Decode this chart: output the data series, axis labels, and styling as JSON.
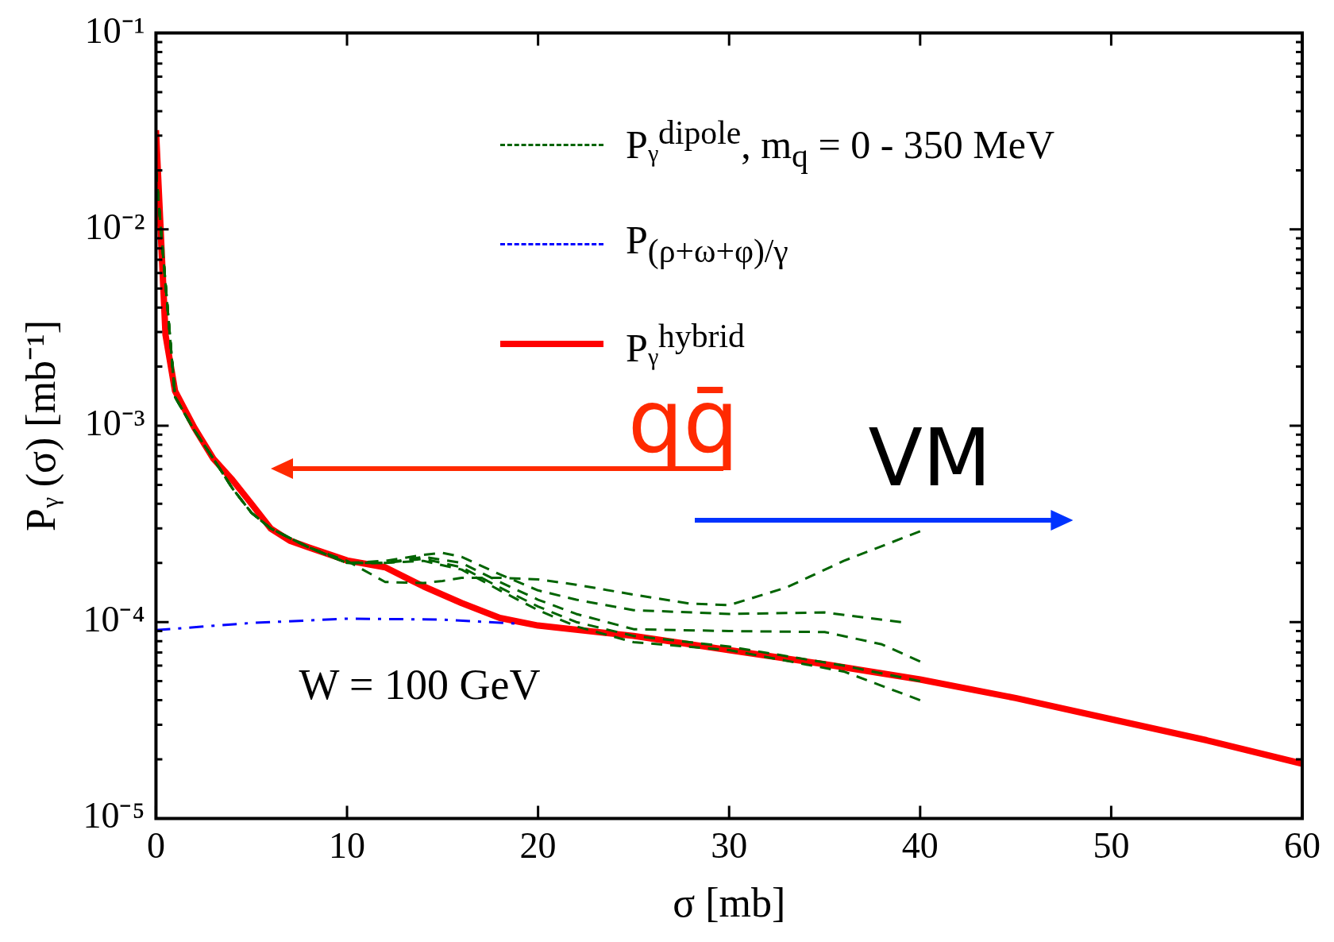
{
  "chart_data": {
    "type": "line",
    "xlabel": "σ [mb]",
    "ylabel": "Pᵧ (σ) [mb⁻¹]",
    "xlim": [
      0,
      60
    ],
    "xticks": [
      0,
      10,
      20,
      30,
      40,
      50,
      60
    ],
    "ylim": [
      1e-05,
      0.1
    ],
    "yticks": [
      {
        "value": 0.1,
        "label": "10⁻¹"
      },
      {
        "value": 0.01,
        "label": "10⁻²"
      },
      {
        "value": 0.001,
        "label": "10⁻³"
      },
      {
        "value": 0.0001,
        "label": "10⁻⁴"
      },
      {
        "value": 1e-05,
        "label": "10⁻⁵"
      }
    ],
    "log": "y",
    "grid": false,
    "legend": "top right",
    "marker": "none",
    "annotations": [
      "W = 100 GeV",
      "qq̄",
      "VM"
    ],
    "series": [
      {
        "name": "Pᵧ$^{dipole}$, m$_{q}$ = 0 - 350 MeV",
        "color": "#006400",
        "line_style": "dashed",
        "x": [
          0,
          1,
          2,
          3,
          4,
          5,
          6,
          8,
          10,
          12,
          14,
          15,
          16,
          18,
          20,
          22,
          25,
          28,
          30,
          33,
          36,
          40
        ],
        "values": [
          0.02,
          0.0014,
          0.00095,
          0.00068,
          0.00048,
          0.00036,
          0.0003,
          0.00024,
          0.000205,
          0.00016,
          0.000158,
          0.000162,
          0.000168,
          0.000168,
          0.000165,
          0.000155,
          0.000138,
          0.000124,
          0.000122,
          0.00015,
          0.000205,
          0.00029
        ]
      },
      {
        "color": "#006400",
        "line_style": "dashed",
        "x": [
          0,
          1,
          2,
          3,
          4,
          5,
          6,
          8,
          10,
          12,
          14,
          15,
          16,
          18,
          20,
          22,
          25,
          30,
          35,
          39
        ],
        "values": [
          0.02,
          0.0014,
          0.00095,
          0.00068,
          0.00048,
          0.00036,
          0.0003,
          0.00024,
          0.0002,
          0.000205,
          0.00022,
          0.000225,
          0.000215,
          0.000175,
          0.000145,
          0.00013,
          0.000115,
          0.00011,
          0.000112,
          0.0001
        ]
      },
      {
        "color": "#006400",
        "line_style": "dashed",
        "x": [
          0,
          1,
          2,
          3,
          4,
          5,
          6,
          8,
          10,
          12,
          14,
          16,
          18,
          20,
          22,
          25,
          30,
          35,
          38,
          40
        ],
        "values": [
          0.02,
          0.0014,
          0.00095,
          0.00068,
          0.00048,
          0.00036,
          0.0003,
          0.00024,
          0.0002,
          0.0002,
          0.000215,
          0.0002,
          0.00016,
          0.00013,
          0.00011,
          9.2e-05,
          9e-05,
          8.9e-05,
          7.7e-05,
          6.3e-05
        ]
      },
      {
        "color": "#006400",
        "line_style": "dashed",
        "x": [
          0,
          1,
          2,
          3,
          4,
          5,
          6,
          8,
          10,
          12,
          14,
          16,
          18,
          20,
          22,
          25,
          30,
          36,
          40
        ],
        "values": [
          0.02,
          0.0014,
          0.00095,
          0.00068,
          0.00048,
          0.00036,
          0.0003,
          0.00024,
          0.0002,
          0.0002,
          0.000205,
          0.000185,
          0.000145,
          0.000115,
          9.5e-05,
          7.9e-05,
          7.2e-05,
          5.6e-05,
          4e-05
        ]
      },
      {
        "color": "#006400",
        "line_style": "dashed",
        "x": [
          0,
          1,
          2,
          3,
          4,
          5,
          6,
          8,
          10,
          12,
          14,
          16,
          18,
          20,
          22,
          25,
          30,
          36,
          40
        ],
        "values": [
          0.02,
          0.0014,
          0.00095,
          0.00068,
          0.00048,
          0.00036,
          0.0003,
          0.00024,
          0.0002,
          0.0002,
          0.00021,
          0.00019,
          0.00015,
          0.00012,
          0.0001,
          8.5e-05,
          7.5e-05,
          6e-05,
          5e-05
        ]
      },
      {
        "name": "P$_{(ρ+ω+φ)/γ}$",
        "color": "#0000ff",
        "line_style": "dashdot",
        "x": [
          0,
          5,
          10,
          15,
          19
        ],
        "values": [
          9.1e-05,
          9.9e-05,
          0.000104,
          0.000103,
          9.8e-05
        ]
      },
      {
        "name": "Pᵧ$^{hybrid}$",
        "color": "#ff0000",
        "line_style": "solid",
        "x": [
          0,
          0.5,
          1,
          2,
          3,
          4,
          5,
          6,
          7,
          8,
          10,
          12,
          14,
          16,
          18,
          20,
          25,
          30,
          35,
          40,
          45,
          50,
          55,
          60
        ],
        "values": [
          0.032,
          0.0029,
          0.0015,
          0.00098,
          0.00068,
          0.00053,
          0.0004,
          0.0003,
          0.00026,
          0.00024,
          0.000206,
          0.00019,
          0.000152,
          0.000125,
          0.000105,
          9.6e-05,
          8.5e-05,
          7.2e-05,
          6.1e-05,
          5.1e-05,
          4.1e-05,
          3.2e-05,
          2.5e-05,
          1.9e-05
        ]
      }
    ]
  }
}
